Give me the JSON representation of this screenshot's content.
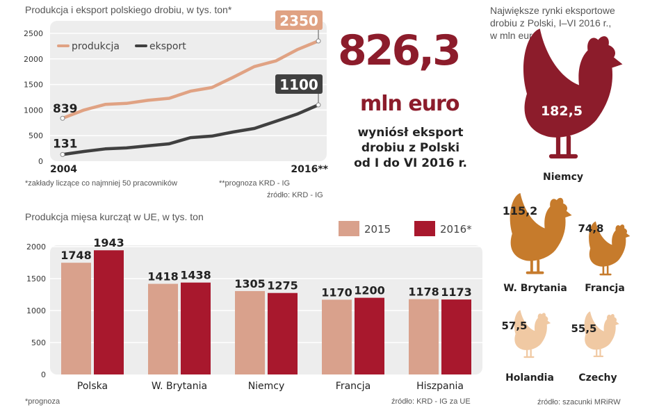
{
  "chart1": {
    "title": "Produkcja i eksport polskiego drobiu, w tys. ton*",
    "footnote": "*zakłady liczące co najmniej 50 pracowników",
    "forecast_note": "**prognoza KRD - IG",
    "source": "źródło: KRD - IG"
  },
  "chart2": {
    "title": "Produkcja mięsa kurcząt w UE, w tys. ton",
    "footnote": "*prognoza",
    "source": "źródło: KRD - IG  za UE"
  },
  "highlight": {
    "value": "826,3",
    "unit": "mln euro",
    "desc_line1": "wyniósł eksport",
    "desc_line2": "drobiu z Polski",
    "desc_line3": "od I do VI 2016 r."
  },
  "markets": {
    "title_line1": "Największe rynki eksportowe",
    "title_line2": "drobiu z Polski, I–VI 2016 r.,",
    "title_line3": "w mln euro",
    "source": "źródło: szacunki MRiRW",
    "items": [
      {
        "country": "Niemcy",
        "value": "182,5",
        "color": "#8c1c2b"
      },
      {
        "country": "W. Brytania",
        "value": "115,2",
        "color": "#c67b2c"
      },
      {
        "country": "Francja",
        "value": "74,8",
        "color": "#c67b2c"
      },
      {
        "country": "Holandia",
        "value": "57,5",
        "color": "#f0c9a3"
      },
      {
        "country": "Czechy",
        "value": "55,5",
        "color": "#f0c9a3"
      }
    ]
  },
  "chart_data": [
    {
      "type": "line",
      "title": "Produkcja i eksport polskiego drobiu, w tys. ton*",
      "x": [
        2004,
        2005,
        2006,
        2007,
        2008,
        2009,
        2010,
        2011,
        2012,
        2013,
        2014,
        2015,
        2016
      ],
      "x_tick_labels": [
        "2004",
        "2016**"
      ],
      "ylim": [
        0,
        2500
      ],
      "y_ticks": [
        0,
        500,
        1000,
        1500,
        2000,
        2500
      ],
      "grid": true,
      "legend": "top-left",
      "series": [
        {
          "name": "produkcja",
          "color": "#e0a283",
          "values": [
            839,
            1000,
            1110,
            1130,
            1190,
            1230,
            1370,
            1440,
            1640,
            1850,
            1960,
            2180,
            2350
          ]
        },
        {
          "name": "eksport",
          "color": "#404040",
          "values": [
            131,
            190,
            240,
            260,
            300,
            340,
            460,
            490,
            570,
            640,
            780,
            920,
            1100
          ]
        }
      ],
      "annotations": [
        "839",
        "131",
        "2350",
        "1100"
      ]
    },
    {
      "type": "bar",
      "title": "Produkcja mięsa kurcząt w UE, w tys. ton",
      "categories": [
        "Polska",
        "W. Brytania",
        "Niemcy",
        "Francja",
        "Hiszpania"
      ],
      "ylim": [
        0,
        2000
      ],
      "y_ticks": [
        0,
        500,
        1000,
        1500,
        2000
      ],
      "legend": "top-right",
      "series": [
        {
          "name": "2015",
          "color": "#d9a18c",
          "values": [
            1748,
            1418,
            1305,
            1170,
            1178
          ]
        },
        {
          "name": "2016*",
          "color": "#a8182d",
          "values": [
            1943,
            1438,
            1275,
            1200,
            1173
          ]
        }
      ]
    }
  ]
}
